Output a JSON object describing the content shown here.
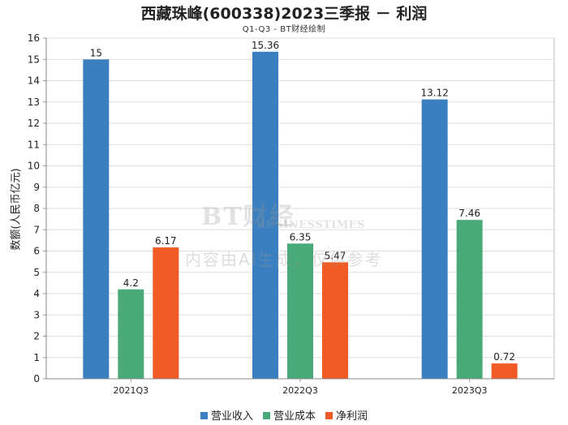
{
  "chart_data": {
    "type": "bar",
    "title": "西藏珠峰(600338)2023三季报 － 利润",
    "subtitle": "Q1-Q3 - BT财经绘制",
    "ylabel": "数额(人民币亿元)",
    "xlabel": "",
    "ylim": [
      0,
      16
    ],
    "yticks": [
      0,
      1,
      2,
      3,
      4,
      5,
      6,
      7,
      8,
      9,
      10,
      11,
      12,
      13,
      14,
      15,
      16
    ],
    "grid": true,
    "legend_position": "bottom",
    "categories": [
      "2021Q3",
      "2022Q3",
      "2023Q3"
    ],
    "series": [
      {
        "name": "营业收入",
        "color": "#3a80c0",
        "values": [
          15,
          15.36,
          13.12
        ],
        "labels": [
          "15",
          "15.36",
          "13.12"
        ]
      },
      {
        "name": "营业成本",
        "color": "#47aa78",
        "values": [
          4.2,
          6.35,
          7.46
        ],
        "labels": [
          "4.2",
          "6.35",
          "7.46"
        ]
      },
      {
        "name": "净利润",
        "color": "#f05a24",
        "values": [
          6.17,
          5.47,
          0.72
        ],
        "labels": [
          "6.17",
          "5.47",
          "0.72"
        ]
      }
    ]
  },
  "watermark": {
    "logo": "BT财经",
    "sub": "BUSINESSTIMES",
    "note": "内容由AI生成，仅供参考"
  }
}
